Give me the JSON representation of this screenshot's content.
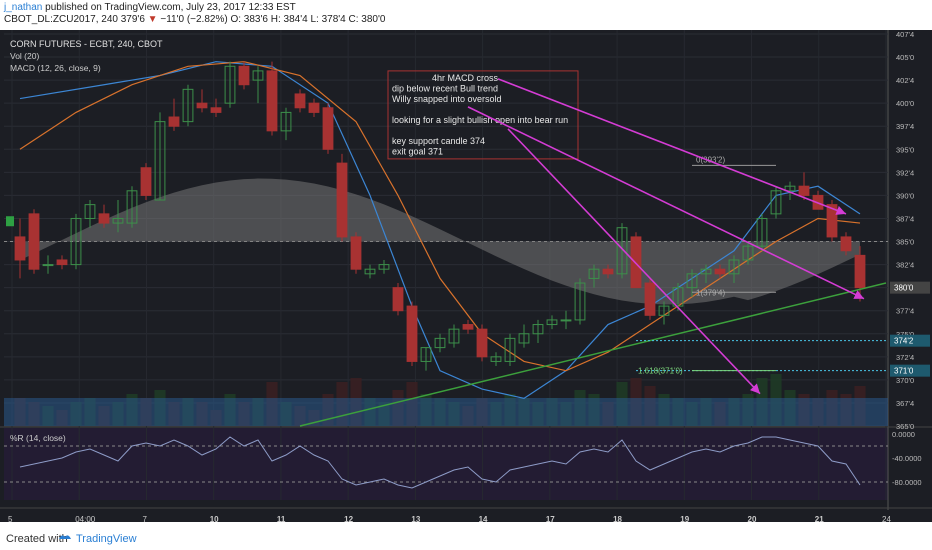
{
  "header": {
    "author": "j_nathan",
    "published_text": "published on TradingView.com, July 23, 2017 12:33 EST",
    "symbol_line_prefix": "CBOT_DL:ZCU2017, 240",
    "price": "379'6",
    "change": "−11'0 (−2.82%)",
    "ohlc": "O: 383'6  H: 384'4  L: 378'4  C: 380'0"
  },
  "legend": {
    "title": "CORN FUTURES - ECBT, 240, CBOT",
    "vol": "Vol (20)",
    "macd": "MACD (12, 26, close, 9)",
    "wr": "%R (14, close)"
  },
  "annotation": {
    "lines": [
      "4hr MACD cross",
      "dip below recent Bull trend",
      "Willy snapped into oversold",
      "",
      "looking for a slight bullish open into bear run",
      "",
      "key support candle 374",
      "exit goal 371"
    ]
  },
  "fib_labels": {
    "f0": "0(393'2)",
    "f1": "1(379'4)",
    "f1618": "1.618(371'0)"
  },
  "footer": {
    "created": "Created with",
    "brand": "TradingView"
  },
  "colors": {
    "up": "#3c8f4a",
    "down": "#a83232",
    "bg": "#1c1e24",
    "blue": "#3c86d4",
    "orange": "#d8722c",
    "magenta": "#d43cd4",
    "green": "#3ca03c",
    "cyan": "#4ac8e8"
  },
  "chart_data": {
    "type": "candlestick",
    "price_axis": {
      "ticks": [
        "407'4",
        "405'0",
        "402'4",
        "400'0",
        "397'4",
        "395'0",
        "392'4",
        "390'0",
        "387'4",
        "385'0",
        "382'4",
        "380'0",
        "377'4",
        "375'0",
        "372'4",
        "370'0",
        "367'4",
        "365'0"
      ]
    },
    "x_axis": {
      "ticks": [
        "5",
        "04:00",
        "7",
        "10",
        "11",
        "12",
        "13",
        "14",
        "17",
        "18",
        "19",
        "20",
        "21",
        "24"
      ]
    },
    "wr_axis": {
      "ticks": [
        "0.0000",
        "-40.0000",
        "-80.0000"
      ]
    },
    "last_price_label": "380'0",
    "level_labels": [
      "374'2",
      "371'0"
    ],
    "candles": [
      [
        385.5,
        387.5,
        381.0,
        383.0
      ],
      [
        388.0,
        388.5,
        381.5,
        382.0
      ],
      [
        382.5,
        383.5,
        381.5,
        382.5
      ],
      [
        383.0,
        383.5,
        382.0,
        382.5
      ],
      [
        382.5,
        388.0,
        382.0,
        387.5
      ],
      [
        387.5,
        389.5,
        386.5,
        389.0
      ],
      [
        388.0,
        389.0,
        386.5,
        387.0
      ],
      [
        387.0,
        389.5,
        386.0,
        387.5
      ],
      [
        387.0,
        391.0,
        386.5,
        390.5
      ],
      [
        393.0,
        393.5,
        389.5,
        390.0
      ],
      [
        389.5,
        399.0,
        389.5,
        398.0
      ],
      [
        398.5,
        400.5,
        397.0,
        397.5
      ],
      [
        398.0,
        402.0,
        397.5,
        401.5
      ],
      [
        400.0,
        401.5,
        399.0,
        399.5
      ],
      [
        399.5,
        400.5,
        398.5,
        399.0
      ],
      [
        400.0,
        404.5,
        399.5,
        404.0
      ],
      [
        404.0,
        404.5,
        401.5,
        402.0
      ],
      [
        402.5,
        404.0,
        400.0,
        403.5
      ],
      [
        403.5,
        404.5,
        396.5,
        397.0
      ],
      [
        397.0,
        399.5,
        396.0,
        399.0
      ],
      [
        401.0,
        401.5,
        399.0,
        399.5
      ],
      [
        400.0,
        400.5,
        398.5,
        399.0
      ],
      [
        399.5,
        400.0,
        394.5,
        395.0
      ],
      [
        393.5,
        394.5,
        385.0,
        385.5
      ],
      [
        385.5,
        386.0,
        381.5,
        382.0
      ],
      [
        381.5,
        382.5,
        381.0,
        382.0
      ],
      [
        382.0,
        383.0,
        381.5,
        382.5
      ],
      [
        380.0,
        380.5,
        377.0,
        377.5
      ],
      [
        378.0,
        378.5,
        371.5,
        372.0
      ],
      [
        372.0,
        373.5,
        371.0,
        373.5
      ],
      [
        373.5,
        375.0,
        373.0,
        374.5
      ],
      [
        374.0,
        376.0,
        373.5,
        375.5
      ],
      [
        376.0,
        376.5,
        375.0,
        375.5
      ],
      [
        375.5,
        376.0,
        372.0,
        372.5
      ],
      [
        372.0,
        373.0,
        371.5,
        372.5
      ],
      [
        372.0,
        375.0,
        371.5,
        374.5
      ],
      [
        374.0,
        376.0,
        373.5,
        375.0
      ],
      [
        375.0,
        376.5,
        374.0,
        376.0
      ],
      [
        376.0,
        377.0,
        375.5,
        376.5
      ],
      [
        376.5,
        377.5,
        375.5,
        376.5
      ],
      [
        376.5,
        381.0,
        376.0,
        380.5
      ],
      [
        381.0,
        382.5,
        380.0,
        382.0
      ],
      [
        382.0,
        382.5,
        381.0,
        381.5
      ],
      [
        381.5,
        387.0,
        381.0,
        386.5
      ],
      [
        385.5,
        386.0,
        380.0,
        380.0
      ],
      [
        380.5,
        381.0,
        376.5,
        377.0
      ],
      [
        377.0,
        378.5,
        376.0,
        378.0
      ],
      [
        378.0,
        380.5,
        377.5,
        380.0
      ],
      [
        380.0,
        382.0,
        379.0,
        381.5
      ],
      [
        381.5,
        382.5,
        380.5,
        382.0
      ],
      [
        382.0,
        382.5,
        381.0,
        381.5
      ],
      [
        381.5,
        383.5,
        380.5,
        383.0
      ],
      [
        383.0,
        385.0,
        382.5,
        384.5
      ],
      [
        384.5,
        388.0,
        384.0,
        387.5
      ],
      [
        388.0,
        391.0,
        387.5,
        390.5
      ],
      [
        390.5,
        391.5,
        389.5,
        391.0
      ],
      [
        391.0,
        392.5,
        389.5,
        390.0
      ],
      [
        390.0,
        390.5,
        388.5,
        388.5
      ],
      [
        389.0,
        389.5,
        385.0,
        385.5
      ],
      [
        385.5,
        386.0,
        383.5,
        384.0
      ],
      [
        383.5,
        384.5,
        378.5,
        380.0
      ]
    ],
    "volume": [
      0.35,
      0.3,
      0.25,
      0.2,
      0.3,
      0.35,
      0.25,
      0.3,
      0.4,
      0.35,
      0.45,
      0.3,
      0.35,
      0.3,
      0.2,
      0.4,
      0.3,
      0.35,
      0.55,
      0.3,
      0.25,
      0.2,
      0.4,
      0.55,
      0.6,
      0.35,
      0.3,
      0.45,
      0.55,
      0.4,
      0.35,
      0.3,
      0.25,
      0.35,
      0.3,
      0.4,
      0.35,
      0.3,
      0.35,
      0.3,
      0.45,
      0.4,
      0.3,
      0.55,
      0.6,
      0.5,
      0.4,
      0.35,
      0.3,
      0.35,
      0.3,
      0.35,
      0.4,
      0.6,
      0.65,
      0.45,
      0.4,
      0.35,
      0.45,
      0.4,
      0.5
    ],
    "wr": [
      -55,
      -50,
      -45,
      -40,
      -30,
      -25,
      -35,
      -45,
      -20,
      -15,
      -20,
      -10,
      -20,
      -35,
      -25,
      -5,
      -20,
      -10,
      -45,
      -35,
      -20,
      -35,
      -45,
      -75,
      -85,
      -80,
      -75,
      -85,
      -90,
      -80,
      -70,
      -60,
      -55,
      -75,
      -80,
      -60,
      -55,
      -50,
      -45,
      -50,
      -30,
      -25,
      -30,
      -10,
      -45,
      -60,
      -50,
      -40,
      -30,
      -25,
      -30,
      -20,
      -15,
      -5,
      -5,
      -10,
      -15,
      -20,
      -45,
      -50,
      -85
    ]
  }
}
